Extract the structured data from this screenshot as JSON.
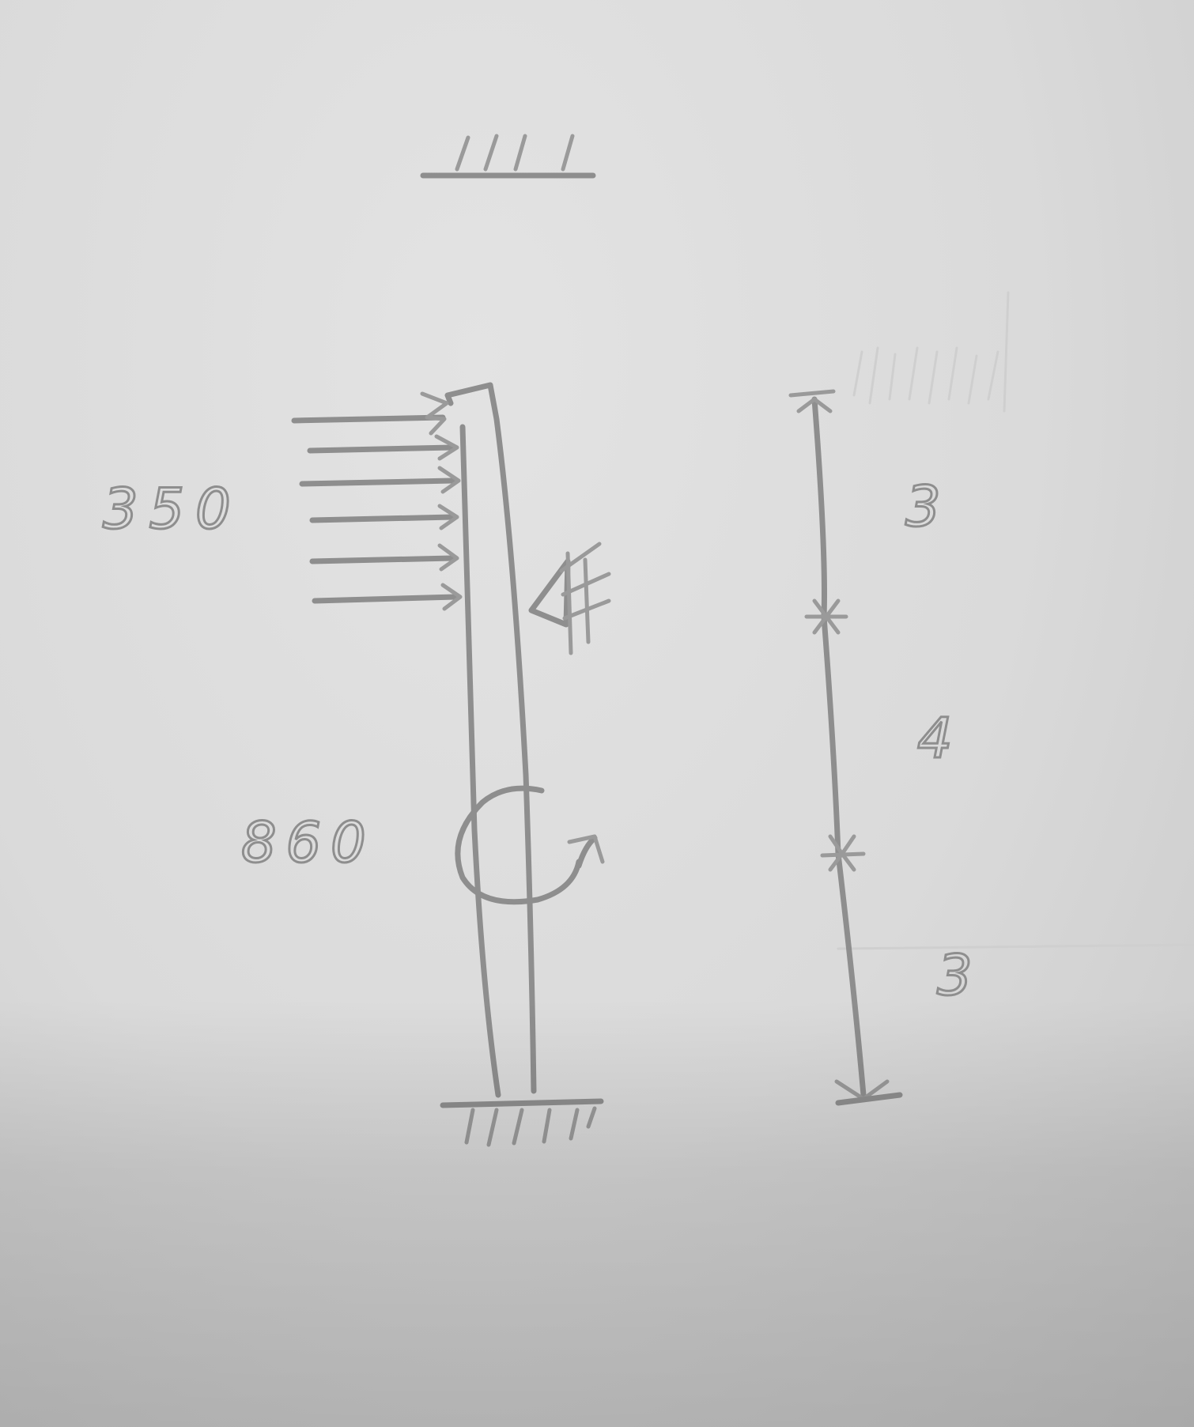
{
  "diagram": {
    "distributed_load_label": "350",
    "moment_label": "860",
    "dimensions": [
      "3",
      "4",
      "3"
    ]
  }
}
